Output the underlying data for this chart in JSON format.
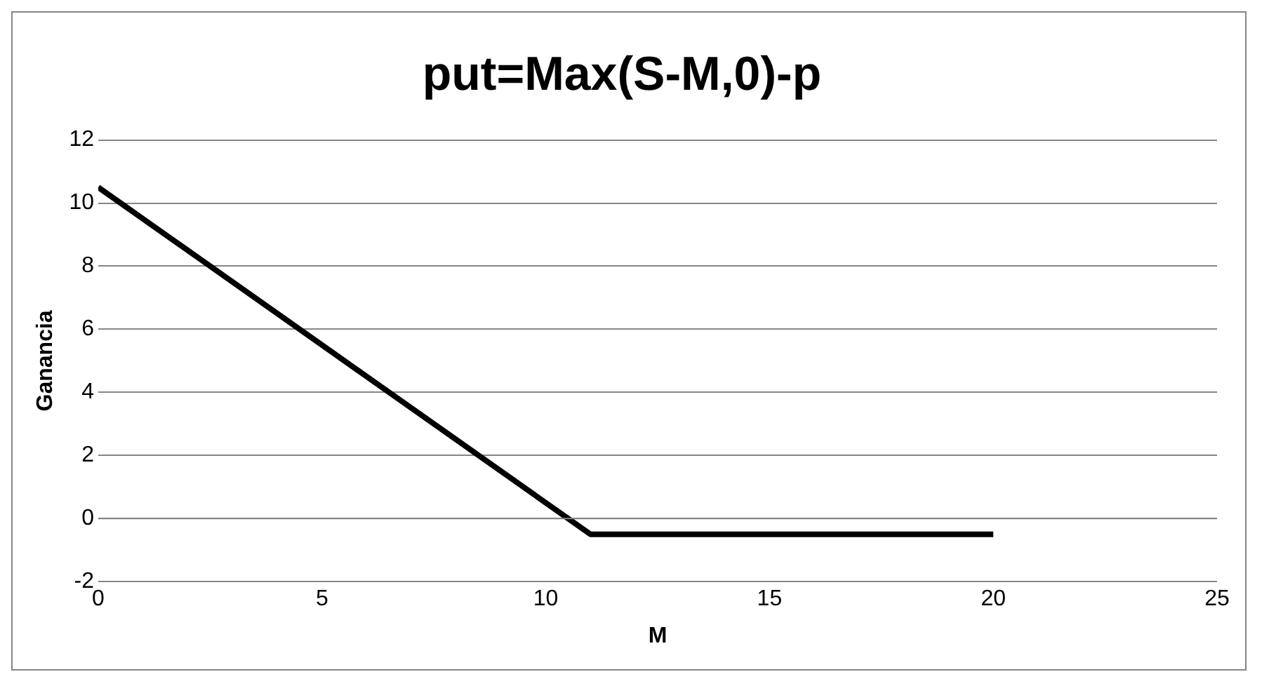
{
  "chart_data": {
    "type": "line",
    "title": "put=Max(S-M,0)-p",
    "xlabel": "M",
    "ylabel": "Ganancia",
    "series": [
      {
        "color": "#000000",
        "x": [
          0,
          11,
          20
        ],
        "values": [
          10.5,
          -0.5,
          -0.5
        ]
      }
    ],
    "xlim": [
      0,
      25
    ],
    "xticks": [
      0,
      5,
      10,
      15,
      20,
      25
    ],
    "ylim": [
      -2,
      12
    ],
    "yticks": [
      -2,
      0,
      2,
      4,
      6,
      8,
      10,
      12
    ],
    "grid": "y",
    "legend": false,
    "marker": "none",
    "line_style": "solid"
  }
}
